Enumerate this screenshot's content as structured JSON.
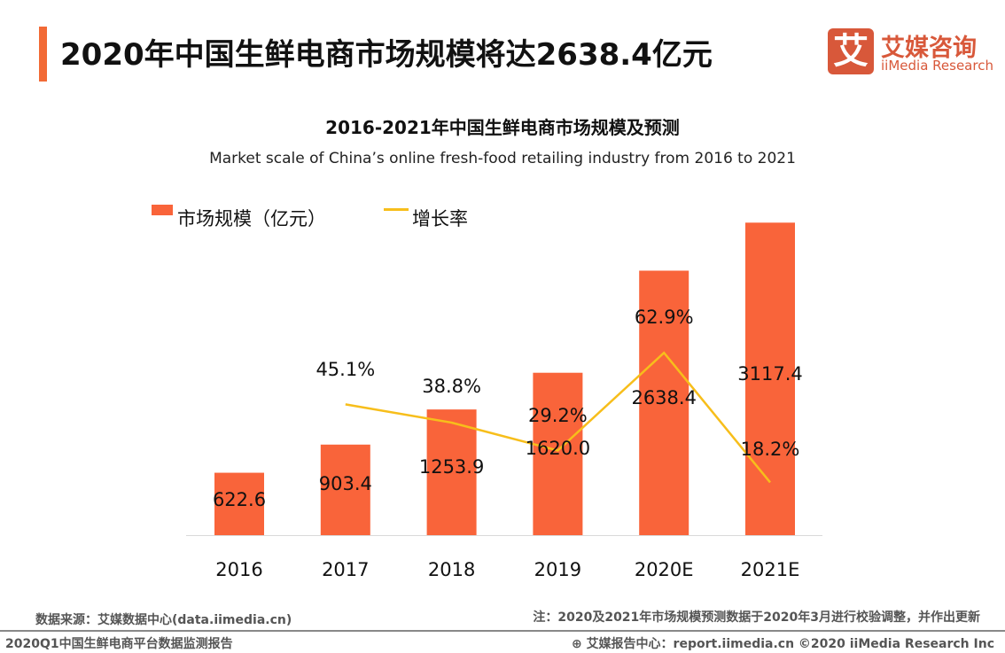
{
  "header": {
    "title": "2020年中国生鲜电商市场规模将达2638.4亿元",
    "accent_color": "#f26a36"
  },
  "logo": {
    "mark": "艾",
    "name_cn": "艾媒咨询",
    "name_en": "iiMedia Research",
    "color": "#d8583a"
  },
  "chart_data": {
    "type": "bar",
    "title": "2016-2021年中国生鲜电商市场规模及预测",
    "subtitle": "Market scale of China’s online fresh-food retailing industry from 2016 to 2021",
    "categories": [
      "2016",
      "2017",
      "2018",
      "2019",
      "2020E",
      "2021E"
    ],
    "series": [
      {
        "name": "市场规模（亿元）",
        "type": "bar",
        "color": "#f9643a",
        "values": [
          622.6,
          903.4,
          1253.9,
          1620.0,
          2638.4,
          3117.4
        ],
        "labels": [
          "622.6",
          "903.4",
          "1253.9",
          "1620.0",
          "2638.4",
          "3117.4"
        ]
      },
      {
        "name": "增长率",
        "type": "line",
        "color": "#f7be1b",
        "axis": "secondary",
        "values": [
          null,
          45.1,
          38.8,
          29.2,
          62.9,
          18.2
        ],
        "labels": [
          "",
          "45.1%",
          "38.8%",
          "29.2%",
          "62.9%",
          "18.2%"
        ]
      }
    ],
    "ylim": [
      0,
      3500
    ],
    "y2lim": [
      0,
      121
    ],
    "grid": false,
    "legend": "top-left"
  },
  "footer": {
    "source": "数据来源：艾媒数据中心(data.iimedia.cn)",
    "note": "注：2020及2021年市场规模预测数据于2020年3月进行校验调整，并作出更新",
    "report": "2020Q1中国生鲜电商平台数据监测报告",
    "site": "艾媒报告中心：report.iimedia.cn   ©2020  iiMedia Research  Inc"
  }
}
